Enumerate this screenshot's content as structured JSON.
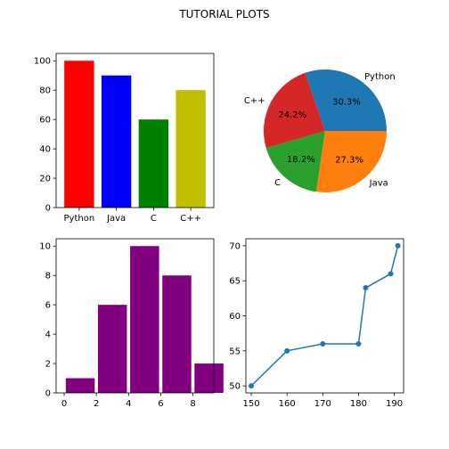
{
  "figure": {
    "title": "TUTORIAL PLOTS"
  },
  "chart_data": [
    {
      "type": "bar",
      "categories": [
        "Python",
        "Java",
        "C",
        "C++"
      ],
      "values": [
        100,
        90,
        60,
        80
      ],
      "colors": [
        "#ff0000",
        "#0000ff",
        "#008000",
        "#bfbf00"
      ],
      "ylim": [
        0,
        105
      ],
      "yticks": [
        0,
        20,
        40,
        60,
        80,
        100
      ],
      "title": "",
      "xlabel": "",
      "ylabel": "",
      "grid": false
    },
    {
      "type": "pie",
      "labels": [
        "Python",
        "C++",
        "C",
        "Java"
      ],
      "values": [
        30.3,
        24.2,
        18.2,
        27.3
      ],
      "pct_labels": [
        "30.3%",
        "24.2%",
        "18.2%",
        "27.3%"
      ],
      "colors": [
        "#1f77b4",
        "#d62728",
        "#2ca02c",
        "#ff7f0e"
      ],
      "title": ""
    },
    {
      "type": "bar",
      "variant": "histogram",
      "bins": [
        [
          0,
          2
        ],
        [
          2,
          4
        ],
        [
          4,
          6
        ],
        [
          6,
          8
        ],
        [
          8,
          10
        ]
      ],
      "values": [
        1,
        6,
        10,
        8,
        2
      ],
      "color": "#800080",
      "xlim": [
        -0.5,
        9.3
      ],
      "xticks": [
        0,
        2,
        4,
        6,
        8
      ],
      "ylim": [
        0,
        10.5
      ],
      "yticks": [
        0,
        2,
        4,
        6,
        8,
        10
      ],
      "title": "",
      "xlabel": "",
      "ylabel": "",
      "grid": false
    },
    {
      "type": "line",
      "x": [
        150,
        160,
        170,
        180,
        182,
        189,
        191
      ],
      "y": [
        50,
        55,
        56,
        56,
        64,
        66,
        70
      ],
      "color": "#1f77b4",
      "marker": "circle",
      "xlim": [
        148.5,
        192.6
      ],
      "xticks": [
        150,
        160,
        170,
        180,
        190
      ],
      "ylim": [
        49.0,
        71.0
      ],
      "yticks": [
        50,
        55,
        60,
        65,
        70
      ],
      "title": "",
      "xlabel": "",
      "ylabel": "",
      "grid": false
    }
  ]
}
